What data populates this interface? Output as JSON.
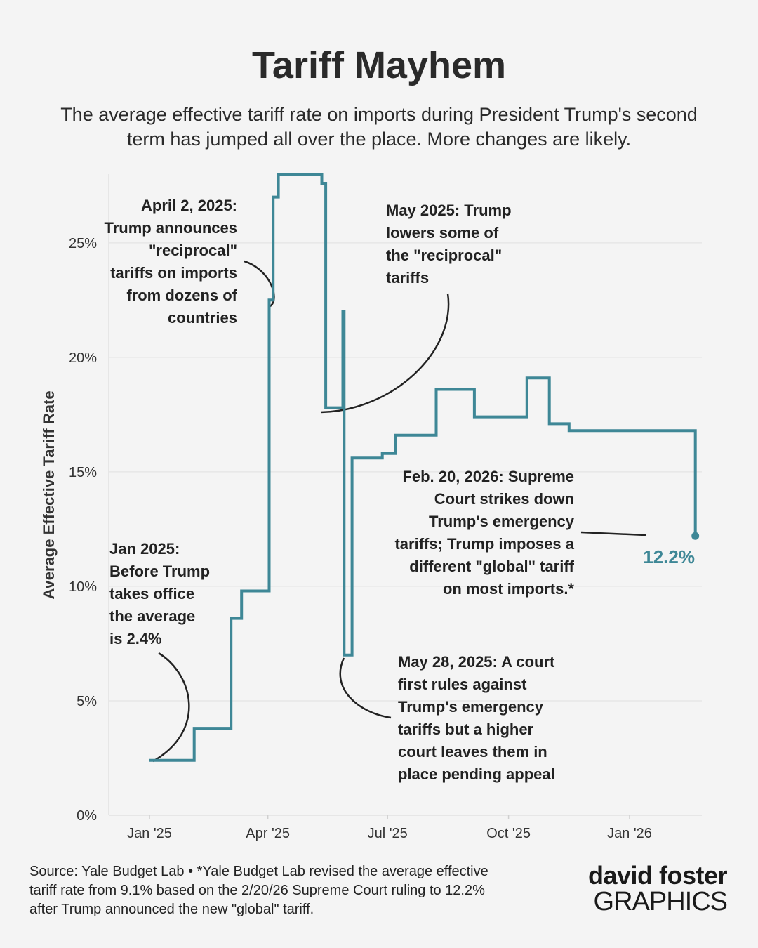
{
  "header": {
    "title": "Tariff Mayhem",
    "subtitle_line1": "The average effective tariff rate on imports during President Trump's second",
    "subtitle_line2": "term has jumped all over the place. More changes are likely."
  },
  "colors": {
    "line": "#3e8796",
    "background": "#f4f4f4",
    "grid": "#e6e6e6",
    "text": "#222222"
  },
  "chart_data": {
    "type": "line",
    "step": true,
    "title": "Tariff Mayhem",
    "ylabel": "Average Effective Tariff Rate",
    "xlabel": "",
    "ylim": [
      0,
      28
    ],
    "xlim": [
      "2024-12-01",
      "2026-03-31"
    ],
    "grid": "horizontal",
    "y_ticks": [
      0,
      5,
      10,
      15,
      20,
      25
    ],
    "y_tick_labels": [
      "0%",
      "5%",
      "10%",
      "15%",
      "20%",
      "25%"
    ],
    "x_ticks": [
      "2025-01-01",
      "2025-04-01",
      "2025-07-01",
      "2025-10-01",
      "2026-01-01"
    ],
    "x_tick_labels": [
      "Jan '25",
      "Apr '25",
      "Jul '25",
      "Oct '25",
      "Jan '26"
    ],
    "series": [
      {
        "x": [
          "2025-01-01",
          "2025-02-04",
          "2025-03-04",
          "2025-03-12",
          "2025-04-02",
          "2025-04-05",
          "2025-04-09",
          "2025-04-10",
          "2025-05-12",
          "2025-05-15",
          "2025-05-27",
          "2025-05-28",
          "2025-05-29",
          "2025-05-29",
          "2025-06-04",
          "2025-06-16",
          "2025-06-27",
          "2025-07-07",
          "2025-08-07",
          "2025-09-05",
          "2025-10-15",
          "2025-11-01",
          "2025-11-16",
          "2026-02-20",
          "2026-02-20"
        ],
        "y": [
          2.4,
          3.8,
          8.6,
          9.8,
          22.5,
          27.0,
          28.0,
          28.0,
          27.6,
          17.8,
          17.8,
          22.0,
          17.8,
          7.0,
          15.6,
          15.6,
          15.8,
          16.6,
          18.6,
          17.4,
          19.1,
          17.1,
          16.8,
          16.8,
          12.2
        ]
      }
    ],
    "end_label": "12.2%"
  },
  "annotations": {
    "apr2025": [
      "April 2, 2025:",
      "Trump announces",
      "\"reciprocal\"",
      "tariffs on imports",
      "from dozens of",
      "countries"
    ],
    "may2025": [
      "May 2025: Trump",
      "lowers some of",
      "the \"reciprocal\"",
      "tariffs"
    ],
    "feb2026": [
      "Feb. 20, 2026: Supreme",
      "Court strikes down",
      "Trump's emergency",
      "tariffs; Trump imposes a",
      "different \"global\" tariff",
      "on most imports.*"
    ],
    "jan2025": [
      "Jan 2025:",
      "Before Trump",
      "takes office",
      "the average",
      "is 2.4%"
    ],
    "may28_2025": [
      "May 28, 2025: A court",
      "first rules against",
      "Trump's emergency",
      "tariffs but a higher",
      "court leaves them in",
      "place pending appeal"
    ]
  },
  "footer": {
    "line1": "Source: Yale Budget Lab • *Yale Budget Lab revised the average effective",
    "line2": "tariff rate from 9.1% based on the 2/20/26 Supreme Court ruling to 12.2%",
    "line3": "after Trump announced the new \"global\" tariff."
  },
  "logo": {
    "top": "david foster",
    "bottom": "GRAPHICS"
  }
}
